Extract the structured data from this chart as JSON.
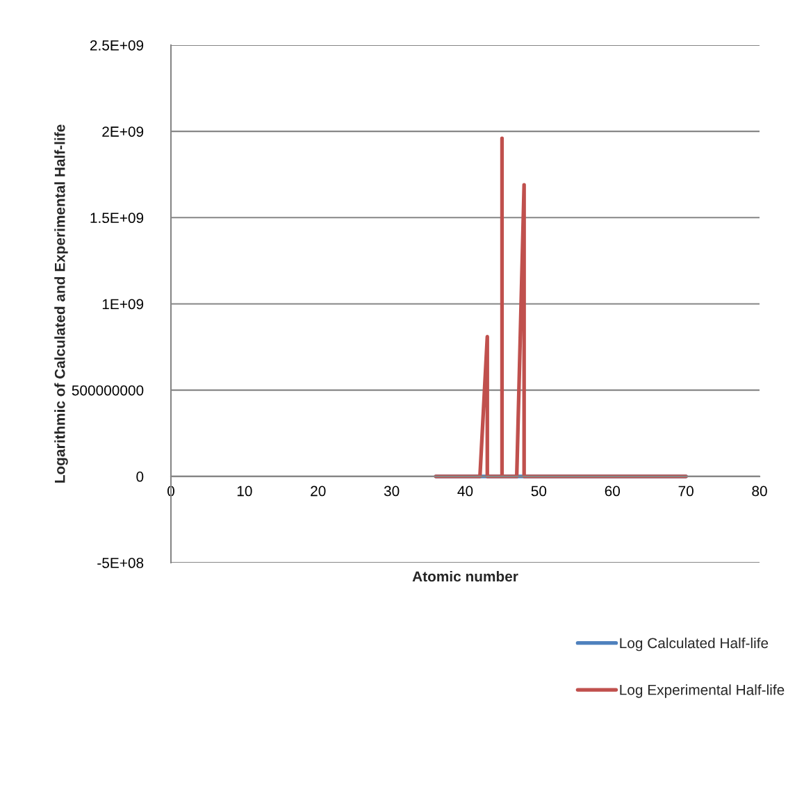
{
  "chart_data": {
    "type": "line",
    "xlabel": "Atomic number",
    "ylabel": "Logarithmic of Calculated and Experimental Half-life",
    "xlim": [
      0,
      80
    ],
    "xticks": [
      0,
      10,
      20,
      30,
      40,
      50,
      60,
      70,
      80
    ],
    "ylim": [
      -500000000,
      2500000000
    ],
    "yticks": [
      {
        "value": -500000000,
        "label": "-5E+08"
      },
      0,
      500000000,
      {
        "value": 1000000000,
        "label": "1E+09"
      },
      {
        "value": 1500000000,
        "label": "1.5E+09"
      },
      {
        "value": 2000000000,
        "label": "2E+09"
      },
      {
        "value": 2500000000,
        "label": "2.5E+09"
      }
    ],
    "grid": "y",
    "legend": "bottom right",
    "series": [
      {
        "name": "Log Calculated Half-life",
        "color": "#4f81bd",
        "x": [
          36,
          70
        ],
        "values": [
          0,
          0
        ]
      },
      {
        "name": "Log Experimental Half-life",
        "color": "#c0504d",
        "x": [
          36,
          42,
          43,
          43,
          45,
          45,
          45,
          47,
          48,
          48,
          70
        ],
        "values": [
          0,
          0,
          810000000,
          0,
          0,
          1960000000,
          0,
          0,
          1690000000,
          0,
          0
        ]
      }
    ]
  }
}
